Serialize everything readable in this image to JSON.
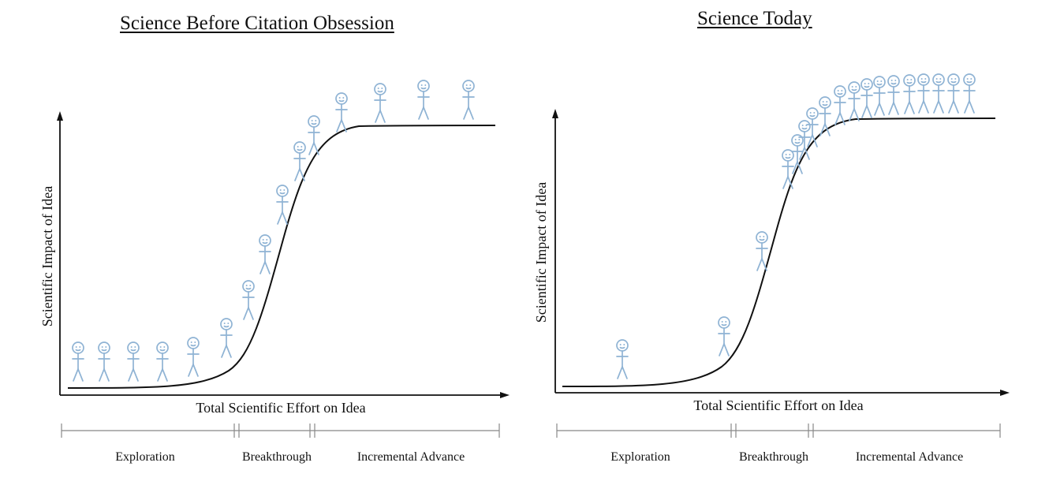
{
  "panels": [
    {
      "title": "Science Before Citation Obsession",
      "xlabel": "Total Scientific Effort on Idea",
      "ylabel": "Scientific Impact of Idea",
      "phases": [
        "Exploration",
        "Breakthrough",
        "Incremental Advance"
      ]
    },
    {
      "title": "Science Today",
      "xlabel": "Total Scientific Effort on Idea",
      "ylabel": "Scientific Impact of Idea",
      "phases": [
        "Exploration",
        "Breakthrough",
        "Incremental Advance"
      ]
    }
  ],
  "figure_icon": "stick-figure-icon",
  "colors": {
    "figure": "#8fb3d4",
    "ink": "#111111"
  }
}
